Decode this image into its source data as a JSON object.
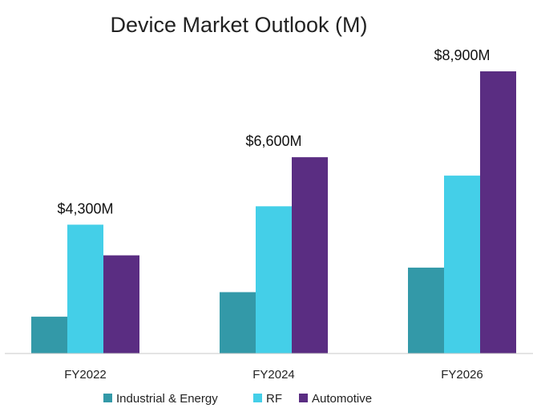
{
  "chart_data": {
    "type": "bar",
    "title": "Device Market Outlook (M)",
    "xlabel": "",
    "ylabel": "",
    "categories": [
      "FY2022",
      "FY2024",
      "FY2026"
    ],
    "series": [
      {
        "name": "Industrial & Energy",
        "color": "#3399a8",
        "values": [
          600,
          1000,
          1400
        ]
      },
      {
        "name": "RF",
        "color": "#44cfe8",
        "values": [
          2100,
          2400,
          2900
        ]
      },
      {
        "name": "Automotive",
        "color": "#5a2d82",
        "values": [
          1600,
          3200,
          4600
        ]
      }
    ],
    "totals": [
      "$4,300M",
      "$6,600M",
      "$8,900M"
    ],
    "ylim": [
      0,
      4600
    ],
    "grid": false,
    "legend_position": "bottom"
  }
}
